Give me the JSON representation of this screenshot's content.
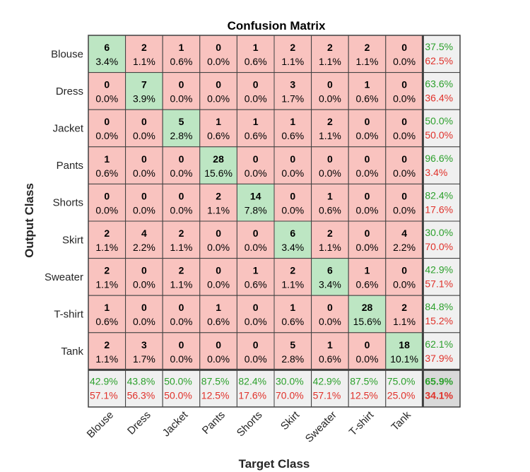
{
  "chart_data": {
    "type": "heatmap",
    "title": "Confusion Matrix",
    "xlabel": "Target Class",
    "ylabel": "Output Class",
    "x_categories": [
      "Blouse",
      "Dress",
      "Jacket",
      "Pants",
      "Shorts",
      "Skirt",
      "Sweater",
      "T-shirt",
      "Tank"
    ],
    "y_categories": [
      "Blouse",
      "Dress",
      "Jacket",
      "Pants",
      "Shorts",
      "Skirt",
      "Sweater",
      "T-shirt",
      "Tank"
    ],
    "counts": [
      [
        6,
        2,
        1,
        0,
        1,
        2,
        2,
        2,
        0
      ],
      [
        0,
        7,
        0,
        0,
        0,
        3,
        0,
        1,
        0
      ],
      [
        0,
        0,
        5,
        1,
        1,
        1,
        2,
        0,
        0
      ],
      [
        1,
        0,
        0,
        28,
        0,
        0,
        0,
        0,
        0
      ],
      [
        0,
        0,
        0,
        2,
        14,
        0,
        1,
        0,
        0
      ],
      [
        2,
        4,
        2,
        0,
        0,
        6,
        2,
        0,
        4
      ],
      [
        2,
        0,
        2,
        0,
        1,
        2,
        6,
        1,
        0
      ],
      [
        1,
        0,
        0,
        1,
        0,
        1,
        0,
        28,
        2
      ],
      [
        2,
        3,
        0,
        0,
        0,
        5,
        1,
        0,
        18
      ]
    ],
    "percents": [
      [
        "3.4%",
        "1.1%",
        "0.6%",
        "0.0%",
        "0.6%",
        "1.1%",
        "1.1%",
        "1.1%",
        "0.0%"
      ],
      [
        "0.0%",
        "3.9%",
        "0.0%",
        "0.0%",
        "0.0%",
        "1.7%",
        "0.0%",
        "0.6%",
        "0.0%"
      ],
      [
        "0.0%",
        "0.0%",
        "2.8%",
        "0.6%",
        "0.6%",
        "0.6%",
        "1.1%",
        "0.0%",
        "0.0%"
      ],
      [
        "0.6%",
        "0.0%",
        "0.0%",
        "15.6%",
        "0.0%",
        "0.0%",
        "0.0%",
        "0.0%",
        "0.0%"
      ],
      [
        "0.0%",
        "0.0%",
        "0.0%",
        "1.1%",
        "7.8%",
        "0.0%",
        "0.6%",
        "0.0%",
        "0.0%"
      ],
      [
        "1.1%",
        "2.2%",
        "1.1%",
        "0.0%",
        "0.0%",
        "3.4%",
        "1.1%",
        "0.0%",
        "2.2%"
      ],
      [
        "1.1%",
        "0.0%",
        "1.1%",
        "0.0%",
        "0.6%",
        "1.1%",
        "3.4%",
        "0.6%",
        "0.0%"
      ],
      [
        "0.6%",
        "0.0%",
        "0.0%",
        "0.6%",
        "0.0%",
        "0.6%",
        "0.0%",
        "15.6%",
        "1.1%"
      ],
      [
        "1.1%",
        "1.7%",
        "0.0%",
        "0.0%",
        "0.0%",
        "2.8%",
        "0.6%",
        "0.0%",
        "10.1%"
      ]
    ],
    "row_summary": [
      [
        "37.5%",
        "62.5%"
      ],
      [
        "63.6%",
        "36.4%"
      ],
      [
        "50.0%",
        "50.0%"
      ],
      [
        "96.6%",
        "3.4%"
      ],
      [
        "82.4%",
        "17.6%"
      ],
      [
        "30.0%",
        "70.0%"
      ],
      [
        "42.9%",
        "57.1%"
      ],
      [
        "84.8%",
        "15.2%"
      ],
      [
        "62.1%",
        "37.9%"
      ]
    ],
    "col_summary": [
      [
        "42.9%",
        "57.1%"
      ],
      [
        "43.8%",
        "56.3%"
      ],
      [
        "50.0%",
        "50.0%"
      ],
      [
        "87.5%",
        "12.5%"
      ],
      [
        "82.4%",
        "17.6%"
      ],
      [
        "30.0%",
        "70.0%"
      ],
      [
        "42.9%",
        "57.1%"
      ],
      [
        "87.5%",
        "12.5%"
      ],
      [
        "75.0%",
        "25.0%"
      ]
    ],
    "overall": [
      "65.9%",
      "34.1%"
    ],
    "colors": {
      "correct": "#bde6c3",
      "incorrect": "#f9c3bf",
      "summary": "#f0f0f0",
      "overall": "#d9d9d9",
      "good_text": "#2ca02c",
      "bad_text": "#e0312a"
    }
  }
}
